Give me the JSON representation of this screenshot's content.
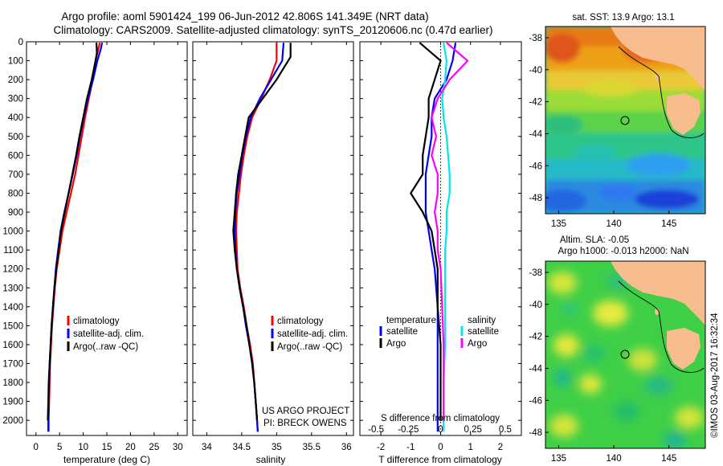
{
  "header": {
    "line1": "Argo profile: aoml 5901424_199 06-Jun-2012 42.806S 141.349E (NRT data)",
    "line2": "Climatology: CARS2009. Satellite-adjusted climatology: synTS_20120606.nc (0.47d earlier)"
  },
  "colors": {
    "red": "#ff0000",
    "blue": "#0000ff",
    "black": "#000000",
    "cyan": "#00e5ee",
    "magenta": "#ff00ff"
  },
  "chart_data": [
    {
      "type": "line",
      "name": "temperature-profile",
      "xlabel": "temperature (deg C)",
      "ylabel": "",
      "xlim": [
        -2,
        32
      ],
      "ylim": [
        2080,
        0
      ],
      "xticks": [
        0,
        5,
        10,
        15,
        20,
        25,
        30
      ],
      "yticks": [
        0,
        100,
        200,
        300,
        400,
        500,
        600,
        700,
        800,
        900,
        1000,
        1100,
        1200,
        1300,
        1400,
        1500,
        1600,
        1700,
        1800,
        1900,
        2000
      ],
      "legend": [
        "climatology",
        "satellite-adj. clim.",
        "Argo(..raw -QC)"
      ],
      "series": [
        {
          "name": "climatology",
          "color": "#ff0000",
          "points": [
            [
              13.5,
              5
            ],
            [
              13.2,
              40
            ],
            [
              12.6,
              100
            ],
            [
              12.0,
              200
            ],
            [
              11.2,
              300
            ],
            [
              10.4,
              400
            ],
            [
              9.7,
              500
            ],
            [
              9.0,
              600
            ],
            [
              8.3,
              700
            ],
            [
              7.4,
              800
            ],
            [
              6.5,
              900
            ],
            [
              5.6,
              1000
            ],
            [
              5.0,
              1100
            ],
            [
              4.4,
              1200
            ],
            [
              4.0,
              1300
            ],
            [
              3.7,
              1400
            ],
            [
              3.4,
              1500
            ],
            [
              3.2,
              1600
            ],
            [
              3.0,
              1700
            ],
            [
              2.9,
              1800
            ],
            [
              2.8,
              1900
            ],
            [
              2.7,
              2000
            ],
            [
              2.7,
              2060
            ]
          ]
        },
        {
          "name": "satellite-adj. clim.",
          "color": "#0000ff",
          "points": [
            [
              14.0,
              5
            ],
            [
              13.7,
              40
            ],
            [
              13.0,
              100
            ],
            [
              12.1,
              200
            ],
            [
              11.0,
              300
            ],
            [
              10.1,
              400
            ],
            [
              9.3,
              500
            ],
            [
              8.6,
              600
            ],
            [
              7.8,
              700
            ],
            [
              6.9,
              800
            ],
            [
              6.0,
              900
            ],
            [
              5.2,
              1000
            ],
            [
              4.7,
              1100
            ],
            [
              4.2,
              1200
            ],
            [
              3.9,
              1300
            ],
            [
              3.6,
              1400
            ],
            [
              3.3,
              1500
            ],
            [
              3.1,
              1600
            ],
            [
              2.9,
              1700
            ],
            [
              2.8,
              1800
            ],
            [
              2.7,
              1900
            ],
            [
              2.6,
              2000
            ],
            [
              2.6,
              2060
            ]
          ]
        },
        {
          "name": "Argo(..raw -QC)",
          "color": "#000000",
          "points": [
            [
              12.8,
              5
            ],
            [
              12.9,
              60
            ],
            [
              12.6,
              100
            ],
            [
              11.8,
              200
            ],
            [
              10.8,
              300
            ],
            [
              10.0,
              400
            ],
            [
              9.2,
              500
            ],
            [
              8.5,
              600
            ],
            [
              7.7,
              700
            ],
            [
              6.9,
              800
            ],
            [
              6.1,
              900
            ],
            [
              5.3,
              1000
            ],
            [
              4.8,
              1100
            ],
            [
              4.3,
              1200
            ],
            [
              3.9,
              1300
            ],
            [
              3.6,
              1400
            ],
            [
              3.3,
              1500
            ],
            [
              3.1,
              1600
            ],
            [
              2.9,
              1700
            ],
            [
              2.7,
              1800
            ],
            [
              2.6,
              1900
            ],
            [
              2.5,
              2000
            ]
          ]
        }
      ]
    },
    {
      "type": "line",
      "name": "salinity-profile",
      "xlabel": "salinity",
      "ylabel": "",
      "xlim": [
        33.8,
        36.1
      ],
      "ylim": [
        2080,
        0
      ],
      "xticks": [
        34,
        34.5,
        35,
        35.5,
        36
      ],
      "xticklabels": [
        "34",
        "34.5",
        "35",
        "35.5",
        "36"
      ],
      "legend": [
        "climatology",
        "satellite-adj. clim.",
        "Argo(..raw -QC)"
      ],
      "annotation": [
        "US ARGO PROJECT",
        "PI: BRECK OWENS"
      ],
      "series": [
        {
          "name": "climatology",
          "color": "#ff0000",
          "points": [
            [
              35.0,
              5
            ],
            [
              35.0,
              100
            ],
            [
              34.9,
              200
            ],
            [
              34.78,
              300
            ],
            [
              34.65,
              400
            ],
            [
              34.58,
              500
            ],
            [
              34.53,
              600
            ],
            [
              34.49,
              700
            ],
            [
              34.46,
              800
            ],
            [
              34.43,
              900
            ],
            [
              34.42,
              1000
            ],
            [
              34.43,
              1100
            ],
            [
              34.44,
              1200
            ],
            [
              34.48,
              1300
            ],
            [
              34.53,
              1400
            ],
            [
              34.57,
              1500
            ],
            [
              34.62,
              1600
            ],
            [
              34.66,
              1700
            ],
            [
              34.68,
              1800
            ],
            [
              34.7,
              1900
            ],
            [
              34.72,
              2000
            ],
            [
              34.73,
              2060
            ]
          ]
        },
        {
          "name": "satellite-adj. clim.",
          "color": "#0000ff",
          "points": [
            [
              35.1,
              5
            ],
            [
              35.08,
              100
            ],
            [
              34.92,
              200
            ],
            [
              34.76,
              300
            ],
            [
              34.63,
              400
            ],
            [
              34.56,
              500
            ],
            [
              34.51,
              600
            ],
            [
              34.47,
              700
            ],
            [
              34.43,
              800
            ],
            [
              34.41,
              900
            ],
            [
              34.4,
              1000
            ],
            [
              34.41,
              1100
            ],
            [
              34.43,
              1200
            ],
            [
              34.47,
              1300
            ],
            [
              34.52,
              1400
            ],
            [
              34.56,
              1500
            ],
            [
              34.61,
              1600
            ],
            [
              34.65,
              1700
            ],
            [
              34.68,
              1800
            ],
            [
              34.7,
              1900
            ],
            [
              34.72,
              2000
            ],
            [
              34.73,
              2060
            ]
          ]
        },
        {
          "name": "Argo(..raw -QC)",
          "color": "#000000",
          "points": [
            [
              35.2,
              5
            ],
            [
              35.2,
              80
            ],
            [
              35.0,
              200
            ],
            [
              34.8,
              300
            ],
            [
              34.6,
              400
            ],
            [
              34.55,
              500
            ],
            [
              34.5,
              600
            ],
            [
              34.45,
              700
            ],
            [
              34.42,
              800
            ],
            [
              34.4,
              900
            ],
            [
              34.38,
              1000
            ],
            [
              34.4,
              1100
            ],
            [
              34.43,
              1200
            ],
            [
              34.47,
              1300
            ],
            [
              34.52,
              1400
            ],
            [
              34.57,
              1500
            ],
            [
              34.61,
              1600
            ],
            [
              34.65,
              1700
            ],
            [
              34.68,
              1800
            ],
            [
              34.7,
              1900
            ],
            [
              34.72,
              2000
            ]
          ]
        }
      ]
    },
    {
      "type": "line",
      "name": "difference-from-climatology",
      "xlabel": "T difference from climatology",
      "xlabel_top": "S difference from climatology",
      "xlim": [
        -2.7,
        2.7
      ],
      "ylim": [
        2080,
        0
      ],
      "xticks": [
        -2,
        -1,
        0,
        1,
        2
      ],
      "xticklabels_top": [
        "-0.5",
        "-0.25",
        "0",
        "0.25",
        "0.5"
      ],
      "legend_temperature": {
        "title": "temperature",
        "items": [
          "satellite",
          "Argo"
        ]
      },
      "legend_salinity": {
        "title": "salinity",
        "items": [
          "satellite",
          "Argo"
        ]
      },
      "series": [
        {
          "name": "temperature satellite",
          "color": "#0000ff",
          "points": [
            [
              0.5,
              5
            ],
            [
              0.4,
              100
            ],
            [
              0.2,
              200
            ],
            [
              -0.2,
              300
            ],
            [
              -0.3,
              400
            ],
            [
              -0.3,
              500
            ],
            [
              -0.4,
              600
            ],
            [
              -0.5,
              700
            ],
            [
              -0.5,
              800
            ],
            [
              -0.5,
              900
            ],
            [
              -0.4,
              1000
            ],
            [
              -0.3,
              1100
            ],
            [
              -0.2,
              1200
            ],
            [
              -0.1,
              1400
            ],
            [
              -0.1,
              1600
            ],
            [
              -0.1,
              1800
            ],
            [
              -0.1,
              2060
            ]
          ]
        },
        {
          "name": "temperature Argo",
          "color": "#000000",
          "points": [
            [
              -0.7,
              5
            ],
            [
              0.0,
              100
            ],
            [
              -0.2,
              200
            ],
            [
              -0.4,
              300
            ],
            [
              -0.4,
              400
            ],
            [
              -0.5,
              500
            ],
            [
              -0.6,
              600
            ],
            [
              -0.6,
              700
            ],
            [
              -1.0,
              800
            ],
            [
              -0.6,
              900
            ],
            [
              -0.3,
              1000
            ],
            [
              -0.2,
              1100
            ],
            [
              -0.1,
              1200
            ],
            [
              -0.1,
              1400
            ],
            [
              0.0,
              1600
            ],
            [
              0.0,
              1800
            ],
            [
              0.0,
              2000
            ]
          ]
        },
        {
          "name": "salinity satellite",
          "color": "#00e5ee",
          "points": [
            [
              0.1,
              5
            ],
            [
              0.2,
              100
            ],
            [
              0.15,
              200
            ],
            [
              0.05,
              300
            ],
            [
              0.1,
              400
            ],
            [
              0.2,
              500
            ],
            [
              0.25,
              600
            ],
            [
              0.3,
              700
            ],
            [
              0.3,
              800
            ],
            [
              0.2,
              900
            ],
            [
              0.2,
              1000
            ],
            [
              0.15,
              1100
            ],
            [
              0.15,
              1200
            ],
            [
              0.15,
              1400
            ],
            [
              0.15,
              1600
            ],
            [
              0.1,
              1800
            ],
            [
              0.1,
              2060
            ]
          ]
        },
        {
          "name": "salinity Argo",
          "color": "#ff00ff",
          "points": [
            [
              0.2,
              5
            ],
            [
              0.9,
              100
            ],
            [
              0.3,
              200
            ],
            [
              -0.1,
              300
            ],
            [
              -0.3,
              400
            ],
            [
              -0.15,
              500
            ],
            [
              -0.3,
              600
            ],
            [
              -0.1,
              700
            ],
            [
              -0.1,
              800
            ],
            [
              -0.2,
              900
            ],
            [
              -0.1,
              1000
            ],
            [
              -0.1,
              1100
            ],
            [
              0.0,
              1200
            ],
            [
              0.05,
              1400
            ],
            [
              0.1,
              1600
            ],
            [
              0.1,
              1800
            ],
            [
              0.1,
              2000
            ]
          ]
        }
      ]
    },
    {
      "type": "heatmap",
      "name": "sst-map",
      "title": "sat. SST: 13.9 Argo: 13.1",
      "xlim": [
        133.8,
        148.3
      ],
      "ylim": [
        -49.0,
        -37.3
      ],
      "xticks": [
        135,
        140,
        145
      ],
      "yticks": [
        -38,
        -40,
        -42,
        -44,
        -46,
        -48
      ],
      "marker": {
        "lon": 141.349,
        "lat": -42.806
      }
    },
    {
      "type": "heatmap",
      "name": "sla-map",
      "title": "Altim. SLA: -0.05",
      "subtitle": "Argo h1000: -0.013 h2000: NaN",
      "xlim": [
        133.8,
        148.3
      ],
      "ylim": [
        -49.0,
        -37.3
      ],
      "xticks": [
        135,
        140,
        145
      ],
      "yticks": [
        -38,
        -40,
        -42,
        -44,
        -46,
        -48
      ],
      "marker": {
        "lon": 141.349,
        "lat": -42.806
      }
    }
  ],
  "side_stamp": "©IMOS 03-Aug-2017 16:32:34"
}
